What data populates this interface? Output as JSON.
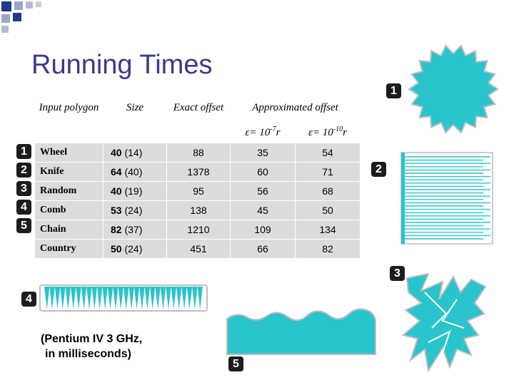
{
  "title": "Running Times",
  "table": {
    "headers": {
      "input": "Input polygon",
      "size": "Size",
      "exact": "Exact offset",
      "approx": "Approximated offset",
      "eps1": "ε= 10-7r",
      "eps2": "ε= 10-10r"
    },
    "rows": [
      {
        "marker": "1",
        "name": "Wheel",
        "size": "40",
        "size_paren": "(14)",
        "exact": "88",
        "eps1": "35",
        "eps2": "54"
      },
      {
        "marker": "2",
        "name": "Knife",
        "size": "64",
        "size_paren": "(40)",
        "exact": "1378",
        "eps1": "60",
        "eps2": "71"
      },
      {
        "marker": "3",
        "name": "Random",
        "size": "40",
        "size_paren": "(19)",
        "exact": "95",
        "eps1": "56",
        "eps2": "68"
      },
      {
        "marker": "4",
        "name": "Comb",
        "size": "53",
        "size_paren": "(24)",
        "exact": "138",
        "eps1": "45",
        "eps2": "50"
      },
      {
        "marker": "5",
        "name": "Chain",
        "size": "82",
        "size_paren": "(37)",
        "exact": "1210",
        "eps1": "109",
        "eps2": "134"
      },
      {
        "marker": "",
        "name": "Country",
        "size": "50",
        "size_paren": "(24)",
        "exact": "451",
        "eps1": "66",
        "eps2": "82"
      }
    ]
  },
  "note": {
    "line1": "(Pentium IV 3 GHz,",
    "line2": "in milliseconds)"
  },
  "shape_markers": {
    "wheel": "1",
    "knife": "2",
    "random": "3",
    "comb": "4",
    "chain": "5"
  },
  "colors": {
    "title": "#3a3a8c",
    "shape_fill": "#29c4cc",
    "corner_blue": "#1f3a8a",
    "cell_bg": "#dcdcdc"
  }
}
